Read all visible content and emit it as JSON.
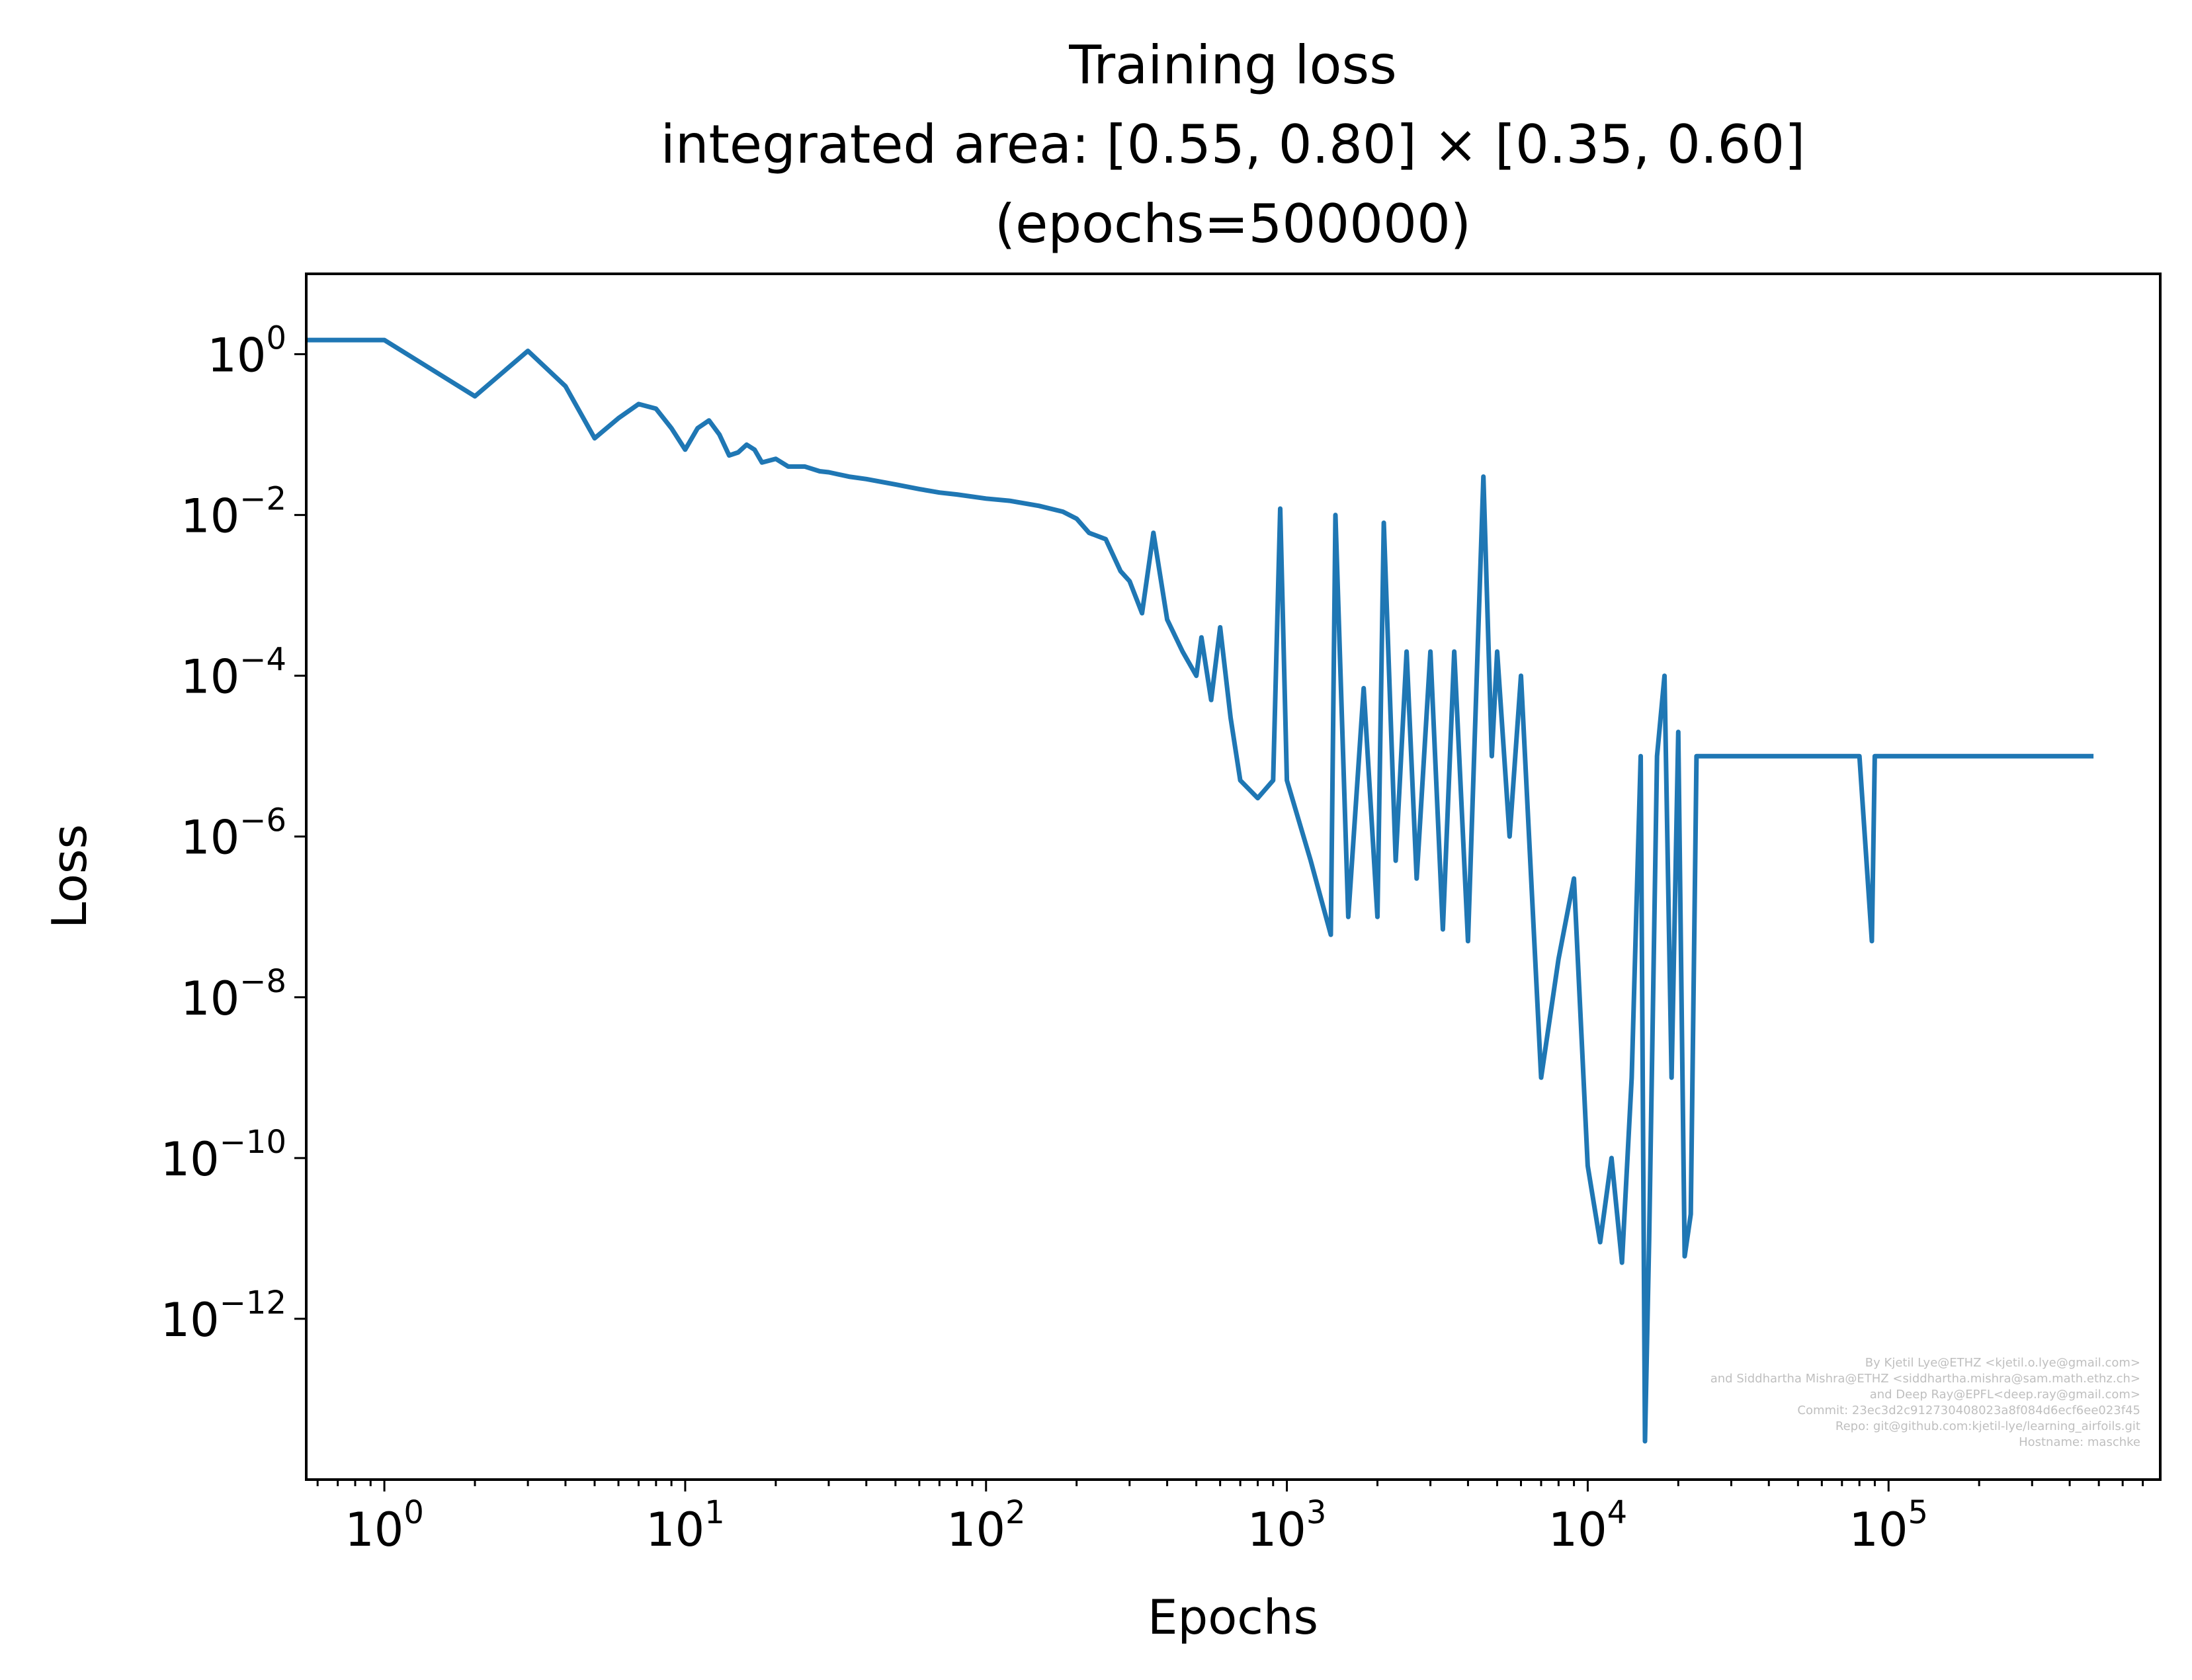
{
  "chart_data": {
    "type": "line",
    "title": [
      "Training loss",
      "integrated area: [0.55, 0.80] × [0.35, 0.60]",
      "(epochs=500000)"
    ],
    "xlabel": "Epochs",
    "ylabel": "Loss",
    "xscale": "log",
    "yscale": "log",
    "xlim": [
      0.55,
      800000
    ],
    "ylim": [
      1e-14,
      10
    ],
    "grid": false,
    "series_color": "#1f77b4",
    "x_ticks": [
      {
        "base": "10",
        "exp": "0",
        "value": 1
      },
      {
        "base": "10",
        "exp": "1",
        "value": 10
      },
      {
        "base": "10",
        "exp": "2",
        "value": 100
      },
      {
        "base": "10",
        "exp": "3",
        "value": 1000
      },
      {
        "base": "10",
        "exp": "4",
        "value": 10000
      },
      {
        "base": "10",
        "exp": "5",
        "value": 100000
      }
    ],
    "y_ticks": [
      {
        "base": "10",
        "exp": "0",
        "value": 1
      },
      {
        "base": "10",
        "exp": "−2",
        "value": 0.01
      },
      {
        "base": "10",
        "exp": "−4",
        "value": 0.0001
      },
      {
        "base": "10",
        "exp": "−6",
        "value": 1e-06
      },
      {
        "base": "10",
        "exp": "−8",
        "value": 1e-08
      },
      {
        "base": "10",
        "exp": "−10",
        "value": 1e-10
      },
      {
        "base": "10",
        "exp": "−12",
        "value": 1e-12
      }
    ],
    "series": [
      {
        "x": [
          0.5,
          1,
          2,
          3,
          4,
          5,
          6,
          7,
          8,
          9,
          10,
          11,
          12,
          13,
          14,
          15,
          16,
          17,
          18,
          20,
          22,
          25,
          28,
          30,
          35,
          40,
          50,
          60,
          70,
          80,
          100,
          120,
          150,
          180,
          200,
          220,
          250,
          280,
          300,
          330,
          360,
          400,
          450,
          500,
          520,
          560,
          600,
          650,
          700,
          800,
          900,
          950,
          1000,
          1200,
          1400,
          1450,
          1600,
          1800,
          2000,
          2100,
          2300,
          2500,
          2700,
          3000,
          3300,
          3600,
          4000,
          4500,
          4800,
          5000,
          5500,
          6000,
          7000,
          8000,
          9000,
          10000,
          11000,
          12000,
          13000,
          14000,
          15000,
          15500,
          16000,
          17000,
          18000,
          19000,
          20000,
          21000,
          22000,
          23000,
          25000,
          30000,
          40000,
          50000,
          60000,
          70000,
          80000,
          88000,
          90000,
          100000,
          150000,
          200000,
          300000,
          400000,
          480000
        ],
        "y": [
          1.5,
          1.5,
          0.3,
          1.1,
          0.4,
          0.09,
          0.16,
          0.24,
          0.21,
          0.12,
          0.065,
          0.12,
          0.15,
          0.1,
          0.055,
          0.06,
          0.075,
          0.065,
          0.045,
          0.05,
          0.04,
          0.04,
          0.035,
          0.034,
          0.03,
          0.028,
          0.024,
          0.021,
          0.019,
          0.018,
          0.016,
          0.015,
          0.013,
          0.011,
          0.009,
          0.006,
          0.005,
          0.002,
          0.0015,
          0.0006,
          0.006,
          0.0005,
          0.0002,
          0.0001,
          0.0003,
          5e-05,
          0.0004,
          3e-05,
          5e-06,
          3e-06,
          5e-06,
          0.012,
          5e-06,
          5e-07,
          6e-08,
          0.01,
          1e-07,
          7e-05,
          1e-07,
          0.008,
          5e-07,
          0.0002,
          3e-07,
          0.0002,
          7e-08,
          0.0002,
          5e-08,
          0.03,
          1e-05,
          0.0002,
          1e-06,
          0.0001,
          1e-09,
          3e-08,
          3e-07,
          8e-11,
          9e-12,
          1e-10,
          5e-12,
          1e-09,
          1e-05,
          3e-14,
          1e-11,
          1e-05,
          0.0001,
          1e-09,
          2e-05,
          6e-12,
          2e-11,
          1e-05,
          1e-05,
          1e-05,
          1e-05,
          1e-05,
          1e-05,
          1e-05,
          1e-05,
          5e-08,
          1e-05,
          1e-05,
          1e-05,
          1e-05,
          1e-05,
          1e-05,
          1e-05
        ]
      }
    ]
  },
  "credits": [
    "By Kjetil Lye@ETHZ <kjetil.o.lye@gmail.com>",
    "and Siddhartha Mishra@ETHZ <siddhartha.mishra@sam.math.ethz.ch>",
    "and Deep Ray@EPFL<deep.ray@gmail.com>",
    "Commit: 23ec3d2c912730408023a8f084d6ecf6ee023f45",
    "Repo: git@github.com:kjetil-lye/learning_airfoils.git",
    "Hostname: maschke"
  ]
}
